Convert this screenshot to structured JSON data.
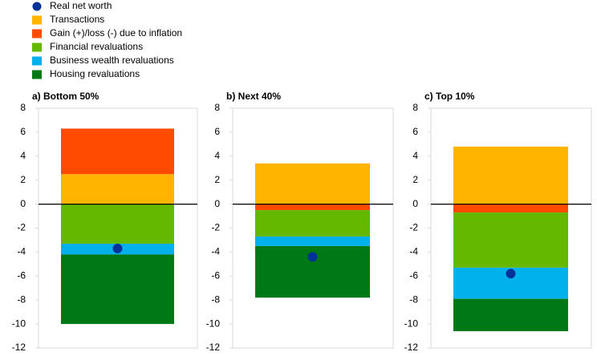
{
  "chart_data": {
    "type": "bar",
    "categories": [
      "a) Bottom 50%",
      "b) Next 40%",
      "c) Top 10%"
    ],
    "series": [
      {
        "name": "Real net worth",
        "color": "#003299",
        "type": "scatter",
        "values": [
          -3.7,
          -4.4,
          -5.8
        ]
      },
      {
        "name": "Transactions",
        "color": "#ffb400",
        "values": [
          2.5,
          3.4,
          4.8
        ]
      },
      {
        "name": "Gain (+)/loss (-) due to inflation",
        "color": "#ff4b00",
        "values": [
          3.8,
          -0.5,
          -0.7
        ]
      },
      {
        "name": "Financial revaluations",
        "color": "#65b800",
        "values": [
          -3.3,
          -2.2,
          -4.6
        ]
      },
      {
        "name": "Business wealth revaluations",
        "color": "#00b1ea",
        "values": [
          -0.9,
          -0.8,
          -2.6
        ]
      },
      {
        "name": "Housing revaluations",
        "color": "#007816",
        "values": [
          -5.8,
          -4.3,
          -2.7
        ]
      }
    ],
    "ylim": [
      -12,
      8
    ],
    "yticks": [
      8,
      6,
      4,
      2,
      0,
      -2,
      -4,
      -6,
      -8,
      -10,
      -12
    ],
    "grid": false
  }
}
